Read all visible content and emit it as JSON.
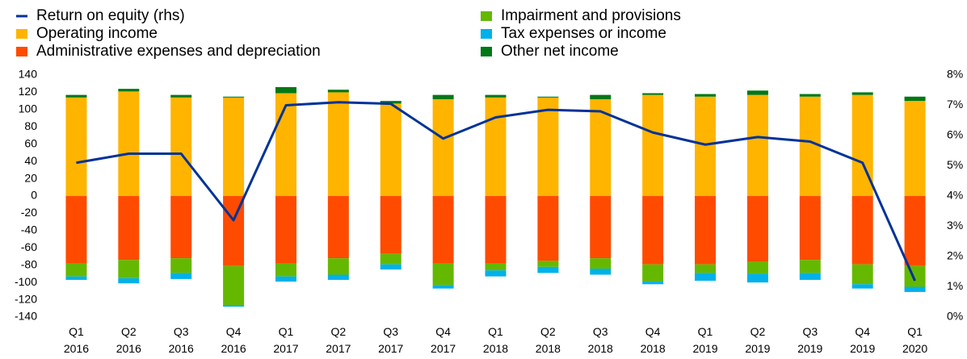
{
  "chart_data": {
    "type": "bar",
    "categories": [
      "Q1 2016",
      "Q2 2016",
      "Q3 2016",
      "Q4 2016",
      "Q1 2017",
      "Q2 2017",
      "Q3 2017",
      "Q4 2017",
      "Q1 2018",
      "Q2 2018",
      "Q3 2018",
      "Q4 2018",
      "Q1 2019",
      "Q2 2019",
      "Q3 2019",
      "Q4 2019",
      "Q1 2020"
    ],
    "series": [
      {
        "name": "Return on equity (rhs)",
        "type": "line",
        "axis": "y2",
        "color": "#003299",
        "values": [
          5.1,
          5.4,
          5.4,
          3.2,
          7.0,
          7.1,
          7.05,
          5.9,
          6.6,
          6.85,
          6.8,
          6.1,
          5.7,
          5.95,
          5.8,
          5.1,
          1.2
        ]
      },
      {
        "name": "Operating income",
        "color": "#ffb400",
        "values": [
          114,
          121,
          114,
          114,
          119,
          120,
          107,
          112,
          114,
          114,
          112,
          117,
          115,
          117,
          115,
          117,
          110
        ]
      },
      {
        "name": "Administrative expenses and depreciation",
        "color": "#ff4b00",
        "values": [
          -78,
          -74,
          -72,
          -81,
          -78,
          -72,
          -67,
          -78,
          -78,
          -75,
          -72,
          -79,
          -79,
          -76,
          -74,
          -79,
          -81
        ]
      },
      {
        "name": "Impairment and provisions",
        "color": "#65b800",
        "values": [
          -15,
          -21,
          -17,
          -45,
          -15,
          -19,
          -12,
          -25,
          -8,
          -7,
          -12,
          -20,
          -10,
          -14,
          -15,
          -23,
          -24
        ]
      },
      {
        "name": "Tax expenses or income",
        "color": "#00b1ea",
        "values": [
          -4,
          -6,
          -7,
          -2,
          -6,
          -6,
          -6,
          -4,
          -7,
          -7,
          -7,
          -3,
          -9,
          -10,
          -8,
          -5,
          -6
        ]
      },
      {
        "name": "Other net income",
        "color": "#007816",
        "values": [
          3,
          3,
          3,
          1,
          7,
          3,
          3,
          5,
          3,
          1,
          5,
          2,
          3,
          5,
          3,
          3,
          5
        ]
      }
    ],
    "ylim": [
      -140,
      140
    ],
    "yticks": [
      -140,
      -120,
      -100,
      -80,
      -60,
      -40,
      -20,
      0,
      20,
      40,
      60,
      80,
      100,
      120,
      140
    ],
    "y2lim": [
      0,
      8
    ],
    "y2ticks": [
      {
        "value": 0,
        "label": "0%"
      },
      {
        "value": 1,
        "label": "1%"
      },
      {
        "value": 2,
        "label": "2%"
      },
      {
        "value": 3,
        "label": "3%"
      },
      {
        "value": 4,
        "label": "4%"
      },
      {
        "value": 5,
        "label": "5%"
      },
      {
        "value": 6,
        "label": "6%"
      },
      {
        "value": 7,
        "label": "7%"
      },
      {
        "value": 8,
        "label": "8%"
      }
    ],
    "grid": false,
    "legend": "top"
  }
}
